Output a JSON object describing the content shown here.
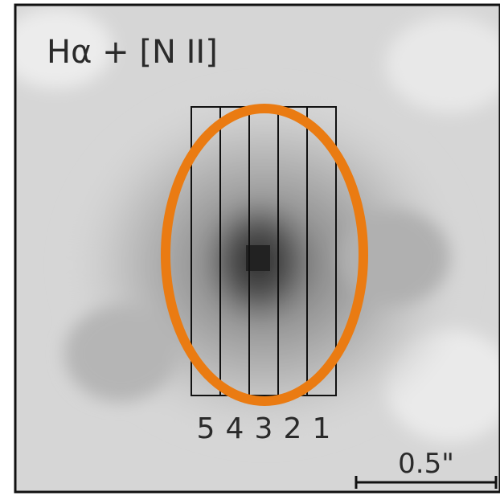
{
  "title": "Hα + [N II]",
  "slits": [
    "5",
    "4",
    "3",
    "2",
    "1"
  ],
  "scale_bar": "0.5\""
}
